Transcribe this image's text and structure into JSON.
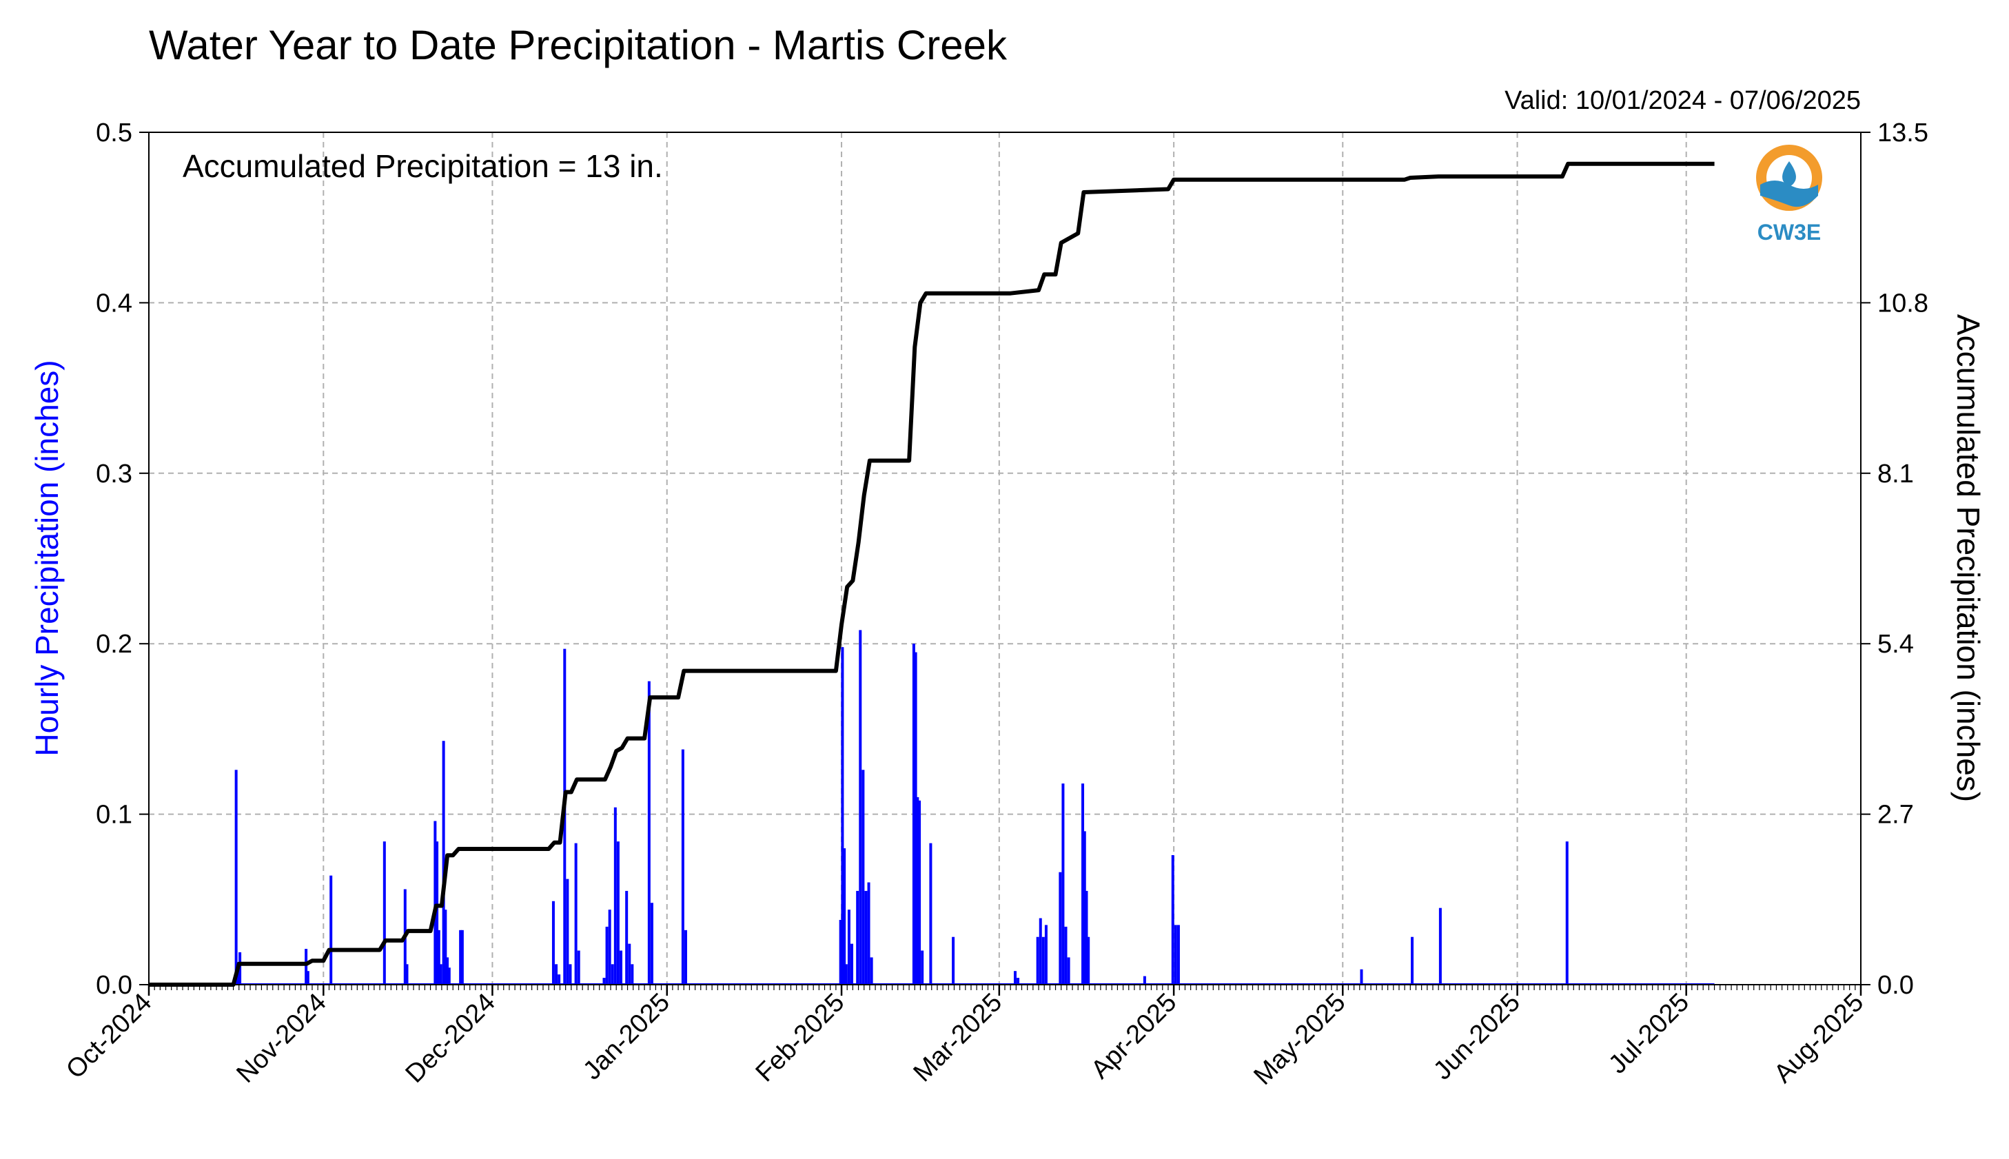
{
  "chart_data": {
    "type": "bar",
    "title": "Water Year to Date Precipitation - Martis Creek",
    "valid_text": "Valid: 10/01/2024 - 07/06/2025",
    "annotation": "Accumulated Precipitation = 13 in.",
    "logo_text": "CW3E",
    "ylabel": "Hourly Precipitation (inches)",
    "ylabel_right": "Accumulated Precipitation (inches)",
    "xlim": [
      "2024-10-01",
      "2025-08-01"
    ],
    "ylim": [
      0,
      0.5
    ],
    "ylim_right": [
      0,
      13.5
    ],
    "x_ticks": [
      "2024-10-01",
      "2024-11-01",
      "2024-12-01",
      "2025-01-01",
      "2025-02-01",
      "2025-03-01",
      "2025-04-01",
      "2025-05-01",
      "2025-06-01",
      "2025-07-01",
      "2025-08-01"
    ],
    "x_tick_labels": [
      "Oct-2024",
      "Nov-2024",
      "Dec-2024",
      "Jan-2025",
      "Feb-2025",
      "Mar-2025",
      "Apr-2025",
      "May-2025",
      "Jun-2025",
      "Jul-2025",
      "Aug-2025"
    ],
    "y_ticks": [
      "0.0",
      "0.1",
      "0.2",
      "0.3",
      "0.4",
      "0.5"
    ],
    "y_ticks_right": [
      "0.0",
      "2.7",
      "5.4",
      "8.1",
      "10.8",
      "13.5"
    ],
    "grid": true,
    "colors": {
      "hourly": "#0000ff",
      "accumulated": "#000000",
      "grid": "#b0b0b0"
    },
    "series": [
      {
        "name": "Hourly Precipitation (inches)",
        "axis": "left",
        "points": [
          [
            "2024-10-16 12:00",
            0.126
          ],
          [
            "2024-10-16 20:00",
            0.012
          ],
          [
            "2024-10-17 04:00",
            0.019
          ],
          [
            "2024-10-28 22:00",
            0.021
          ],
          [
            "2024-10-29 06:00",
            0.008
          ],
          [
            "2024-11-02 08:00",
            0.064
          ],
          [
            "2024-11-11 20:00",
            0.084
          ],
          [
            "2024-11-15 12:00",
            0.056
          ],
          [
            "2024-11-15 20:00",
            0.012
          ],
          [
            "2024-11-20 20:00",
            0.096
          ],
          [
            "2024-11-21 04:00",
            0.084
          ],
          [
            "2024-11-21 12:00",
            0.032
          ],
          [
            "2024-11-21 20:00",
            0.012
          ],
          [
            "2024-11-22 08:00",
            0.143
          ],
          [
            "2024-11-22 16:00",
            0.044
          ],
          [
            "2024-11-23 00:00",
            0.016
          ],
          [
            "2024-11-23 08:00",
            0.01
          ],
          [
            "2024-11-25 08:00",
            0.032
          ],
          [
            "2024-11-25 16:00",
            0.032
          ],
          [
            "2024-12-11 20:00",
            0.049
          ],
          [
            "2024-12-12 08:00",
            0.012
          ],
          [
            "2024-12-12 20:00",
            0.006
          ],
          [
            "2024-12-13 20:00",
            0.197
          ],
          [
            "2024-12-14 08:00",
            0.062
          ],
          [
            "2024-12-14 20:00",
            0.012
          ],
          [
            "2024-12-15 20:00",
            0.083
          ],
          [
            "2024-12-16 08:00",
            0.02
          ],
          [
            "2024-12-20 20:00",
            0.004
          ],
          [
            "2024-12-21 08:00",
            0.034
          ],
          [
            "2024-12-21 20:00",
            0.044
          ],
          [
            "2024-12-22 08:00",
            0.012
          ],
          [
            "2024-12-22 20:00",
            0.104
          ],
          [
            "2024-12-23 08:00",
            0.084
          ],
          [
            "2024-12-23 20:00",
            0.02
          ],
          [
            "2024-12-24 20:00",
            0.055
          ],
          [
            "2024-12-25 08:00",
            0.024
          ],
          [
            "2024-12-25 20:00",
            0.012
          ],
          [
            "2024-12-28 20:00",
            0.178
          ],
          [
            "2024-12-29 08:00",
            0.048
          ],
          [
            "2025-01-03 20:00",
            0.138
          ],
          [
            "2025-01-04 08:00",
            0.032
          ],
          [
            "2025-01-31 20:00",
            0.038
          ],
          [
            "2025-02-01 04:00",
            0.198
          ],
          [
            "2025-02-01 12:00",
            0.08
          ],
          [
            "2025-02-01 20:00",
            0.012
          ],
          [
            "2025-02-02 08:00",
            0.044
          ],
          [
            "2025-02-02 20:00",
            0.024
          ],
          [
            "2025-02-03 20:00",
            0.055
          ],
          [
            "2025-02-04 08:00",
            0.208
          ],
          [
            "2025-02-04 20:00",
            0.126
          ],
          [
            "2025-02-05 08:00",
            0.055
          ],
          [
            "2025-02-05 20:00",
            0.06
          ],
          [
            "2025-02-06 08:00",
            0.016
          ],
          [
            "2025-02-13 20:00",
            0.2
          ],
          [
            "2025-02-14 04:00",
            0.195
          ],
          [
            "2025-02-14 12:00",
            0.11
          ],
          [
            "2025-02-14 20:00",
            0.108
          ],
          [
            "2025-02-15 08:00",
            0.02
          ],
          [
            "2025-02-16 20:00",
            0.083
          ],
          [
            "2025-02-20 20:00",
            0.028
          ],
          [
            "2025-03-03 20:00",
            0.008
          ],
          [
            "2025-03-04 08:00",
            0.004
          ],
          [
            "2025-03-07 20:00",
            0.028
          ],
          [
            "2025-03-08 08:00",
            0.039
          ],
          [
            "2025-03-08 20:00",
            0.028
          ],
          [
            "2025-03-09 08:00",
            0.035
          ],
          [
            "2025-03-11 20:00",
            0.066
          ],
          [
            "2025-03-12 08:00",
            0.118
          ],
          [
            "2025-03-12 20:00",
            0.034
          ],
          [
            "2025-03-13 08:00",
            0.016
          ],
          [
            "2025-03-15 20:00",
            0.118
          ],
          [
            "2025-03-16 04:00",
            0.09
          ],
          [
            "2025-03-16 12:00",
            0.055
          ],
          [
            "2025-03-16 20:00",
            0.028
          ],
          [
            "2025-03-26 20:00",
            0.005
          ],
          [
            "2025-03-31 20:00",
            0.076
          ],
          [
            "2025-04-01 08:00",
            0.035
          ],
          [
            "2025-04-01 20:00",
            0.035
          ],
          [
            "2025-05-04 08:00",
            0.009
          ],
          [
            "2025-05-13 08:00",
            0.028
          ],
          [
            "2025-05-18 08:00",
            0.045
          ],
          [
            "2025-06-09 20:00",
            0.084
          ]
        ]
      },
      {
        "name": "Accumulated Precipitation (inches)",
        "axis": "right",
        "points": [
          [
            "2024-10-01",
            0.0
          ],
          [
            "2024-10-16",
            0.0
          ],
          [
            "2024-10-17",
            0.33
          ],
          [
            "2024-10-29",
            0.33
          ],
          [
            "2024-10-30",
            0.38
          ],
          [
            "2024-11-01",
            0.38
          ],
          [
            "2024-11-02",
            0.55
          ],
          [
            "2024-11-11",
            0.55
          ],
          [
            "2024-11-12",
            0.7
          ],
          [
            "2024-11-15",
            0.7
          ],
          [
            "2024-11-16",
            0.85
          ],
          [
            "2024-11-20",
            0.85
          ],
          [
            "2024-11-21",
            1.25
          ],
          [
            "2024-11-22",
            1.25
          ],
          [
            "2024-11-23",
            2.05
          ],
          [
            "2024-11-24",
            2.05
          ],
          [
            "2024-11-25",
            2.15
          ],
          [
            "2024-12-11",
            2.15
          ],
          [
            "2024-12-12",
            2.25
          ],
          [
            "2024-12-13",
            2.25
          ],
          [
            "2024-12-14",
            3.05
          ],
          [
            "2024-12-15",
            3.05
          ],
          [
            "2024-12-16",
            3.25
          ],
          [
            "2024-12-21",
            3.25
          ],
          [
            "2024-12-22",
            3.45
          ],
          [
            "2024-12-23",
            3.7
          ],
          [
            "2024-12-24",
            3.75
          ],
          [
            "2024-12-25",
            3.9
          ],
          [
            "2024-12-28",
            3.9
          ],
          [
            "2024-12-29",
            4.55
          ],
          [
            "2025-01-03",
            4.55
          ],
          [
            "2025-01-04",
            4.97
          ],
          [
            "2025-01-31",
            4.97
          ],
          [
            "2025-02-01",
            5.7
          ],
          [
            "2025-02-02",
            6.3
          ],
          [
            "2025-02-03",
            6.4
          ],
          [
            "2025-02-04",
            7.0
          ],
          [
            "2025-02-05",
            7.75
          ],
          [
            "2025-02-06",
            8.3
          ],
          [
            "2025-02-13",
            8.3
          ],
          [
            "2025-02-14",
            10.1
          ],
          [
            "2025-02-15",
            10.8
          ],
          [
            "2025-02-16",
            10.95
          ],
          [
            "2025-02-20",
            10.95
          ],
          [
            "2025-03-03",
            10.95
          ],
          [
            "2025-03-08",
            11.0
          ],
          [
            "2025-03-09",
            11.25
          ],
          [
            "2025-03-11",
            11.25
          ],
          [
            "2025-03-12",
            11.75
          ],
          [
            "2025-03-15",
            11.9
          ],
          [
            "2025-03-16",
            12.55
          ],
          [
            "2025-03-31",
            12.6
          ],
          [
            "2025-04-01",
            12.75
          ],
          [
            "2025-05-12",
            12.75
          ],
          [
            "2025-05-13",
            12.78
          ],
          [
            "2025-05-18",
            12.8
          ],
          [
            "2025-06-09",
            12.8
          ],
          [
            "2025-06-10",
            13.0
          ],
          [
            "2025-07-06",
            13.0
          ]
        ]
      }
    ]
  }
}
